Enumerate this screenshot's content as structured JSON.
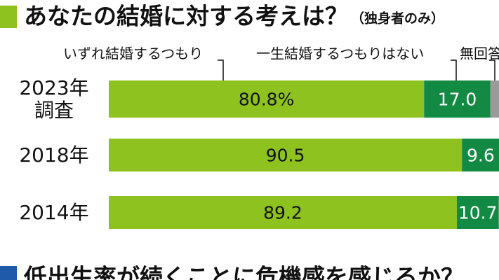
{
  "chart_data": {
    "type": "stacked-bar-horizontal",
    "title": "あなたの結婚に対する考えは？",
    "subtitle": "（独身者のみ）",
    "categories": [
      "2023年\n調査",
      "2018年",
      "2014年"
    ],
    "xlim": [
      0,
      100
    ],
    "series": [
      {
        "name": "いずれ結婚するつもり",
        "color": "#8dc21f",
        "values": [
          80.8,
          90.5,
          89.2
        ],
        "value_labels": [
          "80.8%",
          "90.5",
          "89.2"
        ]
      },
      {
        "name": "一生結婚するつもりはない",
        "color": "#138a43",
        "values": [
          17.0,
          9.6,
          10.7
        ],
        "value_labels": [
          "17.0",
          "9.6",
          "10.7"
        ]
      },
      {
        "name": "無回答",
        "color": "#9a9a9a",
        "values": [
          2.2,
          0,
          0.1
        ]
      }
    ]
  },
  "next_heading": "低出生率が続くことに危機感を感じるか？"
}
